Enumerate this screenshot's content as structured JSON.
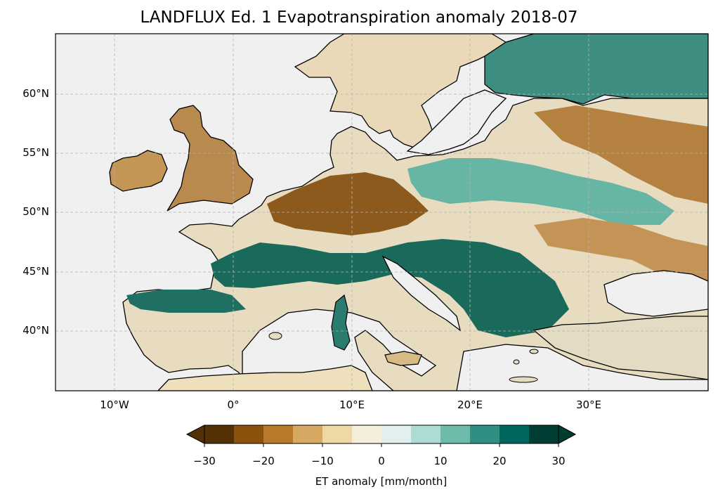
{
  "title": "LANDFLUX Ed. 1 Evapotranspiration anomaly 2018-07",
  "map": {
    "extent": {
      "lon_min": -15,
      "lon_max": 40,
      "lat_min": 35,
      "lat_max": 65
    },
    "ocean_color": "#f0f0f0",
    "border_color": "#000000",
    "gridlines": "dashed grey",
    "lat_ticks": [
      "60°N",
      "55°N",
      "50°N",
      "45°N",
      "40°N"
    ],
    "lon_ticks": [
      "10°W",
      "0°",
      "10°E",
      "20°E",
      "30°E"
    ]
  },
  "colorbar": {
    "label": "ET anomaly [mm/month]",
    "ticks": [
      "−30",
      "−20",
      "−10",
      "0",
      "10",
      "20",
      "30"
    ],
    "extend": "both",
    "colors": [
      "#543005",
      "#8c510a",
      "#b8792a",
      "#d5a962",
      "#eed8a6",
      "#f5eedb",
      "#e1f0ee",
      "#acdcd3",
      "#6dbcab",
      "#2e8f82",
      "#01665e",
      "#013d35"
    ],
    "under_color": "#543005",
    "over_color": "#003c30"
  }
}
